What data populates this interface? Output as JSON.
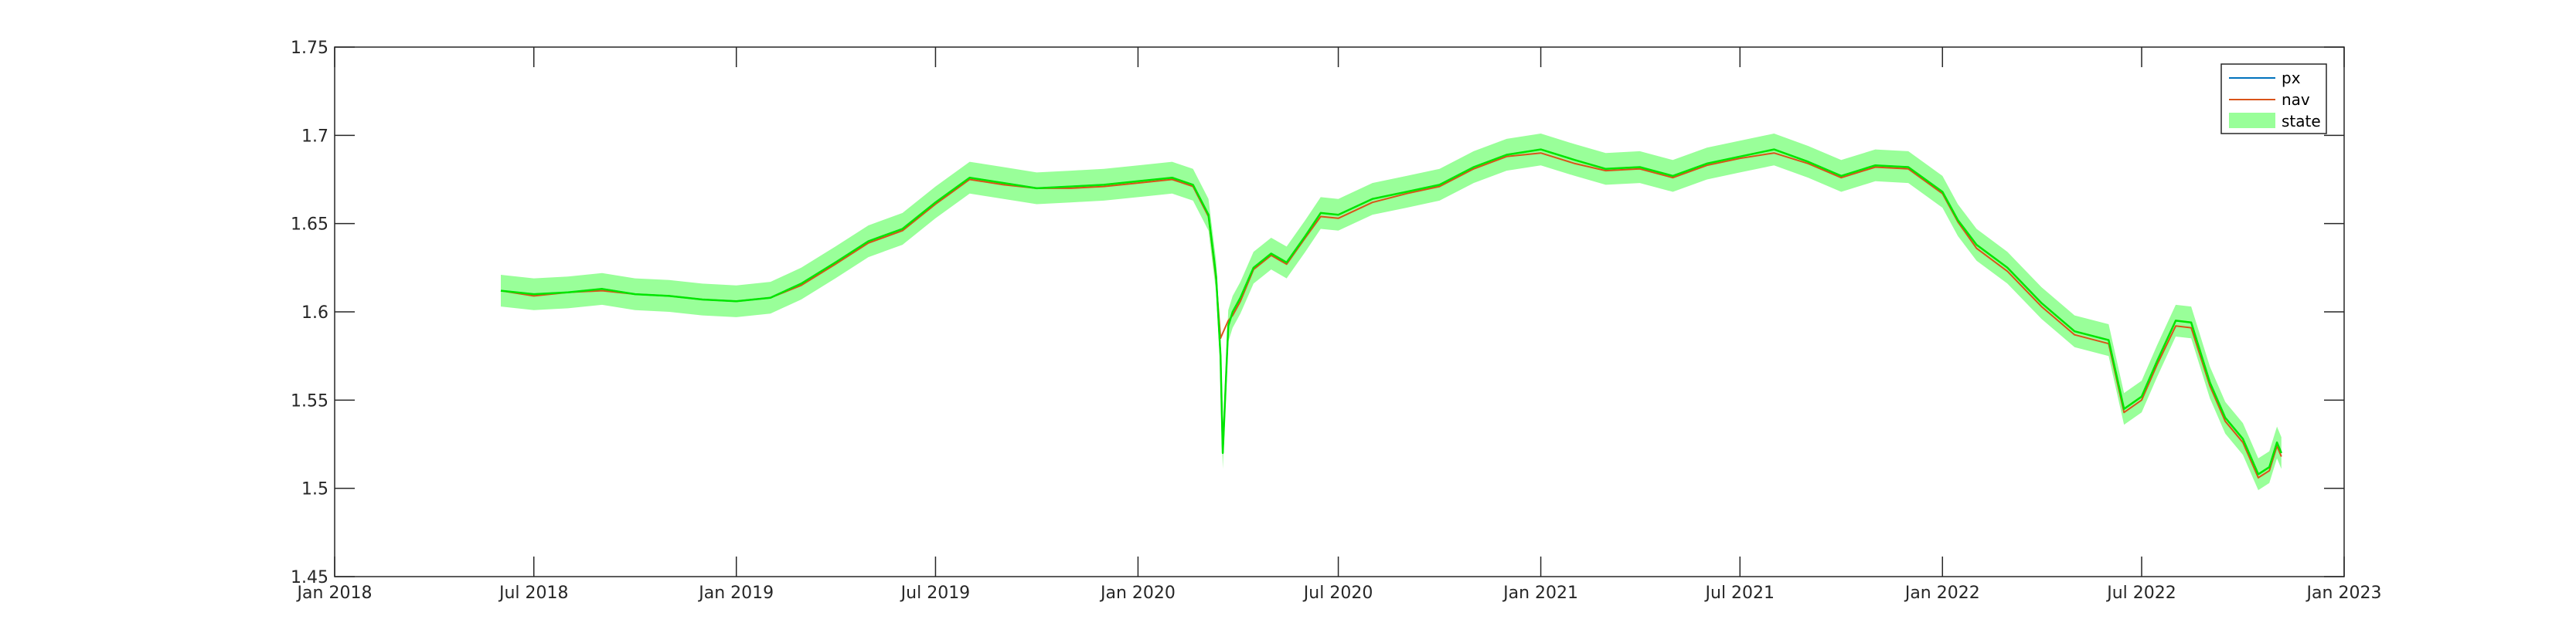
{
  "chart_data": {
    "type": "line",
    "title": "",
    "xlabel": "",
    "ylabel": "",
    "xlim": [
      "2018-01-01",
      "2023-01-01"
    ],
    "ylim": [
      1.45,
      1.75
    ],
    "x_ticks": [
      {
        "date": "2018-01-01",
        "label": "Jan 2018"
      },
      {
        "date": "2018-07-01",
        "label": "Jul 2018"
      },
      {
        "date": "2019-01-01",
        "label": "Jan 2019"
      },
      {
        "date": "2019-07-01",
        "label": "Jul 2019"
      },
      {
        "date": "2020-01-01",
        "label": "Jan 2020"
      },
      {
        "date": "2020-07-01",
        "label": "Jul 2020"
      },
      {
        "date": "2021-01-01",
        "label": "Jan 2021"
      },
      {
        "date": "2021-07-01",
        "label": "Jul 2021"
      },
      {
        "date": "2022-01-01",
        "label": "Jan 2022"
      },
      {
        "date": "2022-07-01",
        "label": "Jul 2022"
      },
      {
        "date": "2023-01-01",
        "label": "Jan 2023"
      }
    ],
    "y_ticks": [
      {
        "value": 1.45,
        "label": "1.45"
      },
      {
        "value": 1.5,
        "label": "1.5"
      },
      {
        "value": 1.55,
        "label": "1.55"
      },
      {
        "value": 1.6,
        "label": "1.6"
      },
      {
        "value": 1.65,
        "label": "1.65"
      },
      {
        "value": 1.7,
        "label": "1.7"
      },
      {
        "value": 1.75,
        "label": "1.75"
      }
    ],
    "grid": false,
    "legend_position": "top-right",
    "x": [
      "2018-06-01",
      "2018-07-01",
      "2018-08-01",
      "2018-09-01",
      "2018-10-01",
      "2018-11-01",
      "2018-12-01",
      "2019-01-01",
      "2019-02-01",
      "2019-03-01",
      "2019-04-01",
      "2019-05-01",
      "2019-06-01",
      "2019-07-01",
      "2019-08-01",
      "2019-09-01",
      "2019-10-01",
      "2019-11-01",
      "2019-12-01",
      "2020-01-01",
      "2020-02-01",
      "2020-02-20",
      "2020-03-05",
      "2020-03-12",
      "2020-03-16",
      "2020-03-18",
      "2020-03-23",
      "2020-03-27",
      "2020-04-03",
      "2020-04-15",
      "2020-05-01",
      "2020-05-15",
      "2020-06-01",
      "2020-06-15",
      "2020-07-01",
      "2020-08-01",
      "2020-09-01",
      "2020-10-01",
      "2020-11-01",
      "2020-12-01",
      "2021-01-01",
      "2021-02-01",
      "2021-03-01",
      "2021-04-01",
      "2021-05-01",
      "2021-06-01",
      "2021-07-01",
      "2021-08-01",
      "2021-09-01",
      "2021-10-01",
      "2021-11-01",
      "2021-12-01",
      "2022-01-01",
      "2022-01-15",
      "2022-02-01",
      "2022-03-01",
      "2022-04-01",
      "2022-05-01",
      "2022-06-01",
      "2022-06-15",
      "2022-07-01",
      "2022-07-15",
      "2022-08-01",
      "2022-08-15",
      "2022-09-01",
      "2022-09-15",
      "2022-10-01",
      "2022-10-15",
      "2022-10-25",
      "2022-11-01",
      "2022-11-05"
    ],
    "series": [
      {
        "name": "px",
        "color": "#0072BD",
        "values": [
          1.612,
          1.61,
          1.611,
          1.613,
          1.61,
          1.609,
          1.607,
          1.606,
          1.608,
          1.616,
          1.628,
          1.64,
          1.647,
          1.662,
          1.676,
          1.673,
          1.67,
          1.671,
          1.672,
          1.674,
          1.676,
          1.672,
          1.655,
          1.62,
          1.575,
          1.52,
          1.592,
          1.6,
          1.608,
          1.625,
          1.633,
          1.628,
          1.643,
          1.656,
          1.655,
          1.664,
          1.668,
          1.672,
          1.682,
          1.689,
          1.692,
          1.686,
          1.681,
          1.682,
          1.677,
          1.684,
          1.688,
          1.692,
          1.685,
          1.677,
          1.683,
          1.682,
          1.668,
          1.652,
          1.638,
          1.625,
          1.605,
          1.589,
          1.584,
          1.545,
          1.552,
          1.572,
          1.595,
          1.594,
          1.56,
          1.54,
          1.528,
          1.508,
          1.512,
          1.526,
          1.52
        ]
      },
      {
        "name": "nav",
        "color": "#D95319",
        "values": [
          1.612,
          1.609,
          1.611,
          1.612,
          1.61,
          1.609,
          1.607,
          1.606,
          1.608,
          1.615,
          1.627,
          1.639,
          1.646,
          1.661,
          1.675,
          1.672,
          1.67,
          1.67,
          1.671,
          1.673,
          1.675,
          1.671,
          1.654,
          1.618,
          1.585,
          1.588,
          1.595,
          1.598,
          1.606,
          1.624,
          1.632,
          1.627,
          1.642,
          1.654,
          1.653,
          1.662,
          1.667,
          1.671,
          1.681,
          1.688,
          1.69,
          1.684,
          1.68,
          1.681,
          1.676,
          1.683,
          1.687,
          1.69,
          1.684,
          1.676,
          1.682,
          1.681,
          1.667,
          1.651,
          1.636,
          1.623,
          1.603,
          1.587,
          1.582,
          1.543,
          1.55,
          1.57,
          1.592,
          1.591,
          1.558,
          1.538,
          1.526,
          1.506,
          1.51,
          1.524,
          1.518
        ]
      },
      {
        "name": "state",
        "color": "#00E600",
        "band_color": "#99FF99",
        "band_halfwidth": 0.009,
        "values": [
          1.612,
          1.61,
          1.611,
          1.613,
          1.61,
          1.609,
          1.607,
          1.606,
          1.608,
          1.616,
          1.628,
          1.64,
          1.647,
          1.662,
          1.676,
          1.673,
          1.67,
          1.671,
          1.672,
          1.674,
          1.676,
          1.672,
          1.655,
          1.62,
          1.575,
          1.52,
          1.592,
          1.6,
          1.608,
          1.625,
          1.633,
          1.628,
          1.643,
          1.656,
          1.655,
          1.664,
          1.668,
          1.672,
          1.682,
          1.689,
          1.692,
          1.686,
          1.681,
          1.682,
          1.677,
          1.684,
          1.688,
          1.692,
          1.685,
          1.677,
          1.683,
          1.682,
          1.668,
          1.652,
          1.638,
          1.625,
          1.605,
          1.589,
          1.584,
          1.545,
          1.552,
          1.572,
          1.595,
          1.594,
          1.56,
          1.54,
          1.528,
          1.508,
          1.512,
          1.526,
          1.52
        ]
      }
    ],
    "legend": [
      {
        "label": "px",
        "kind": "line",
        "color": "#0072BD"
      },
      {
        "label": "nav",
        "kind": "line",
        "color": "#D95319"
      },
      {
        "label": "state",
        "kind": "patch",
        "color": "#99FF99"
      }
    ]
  }
}
